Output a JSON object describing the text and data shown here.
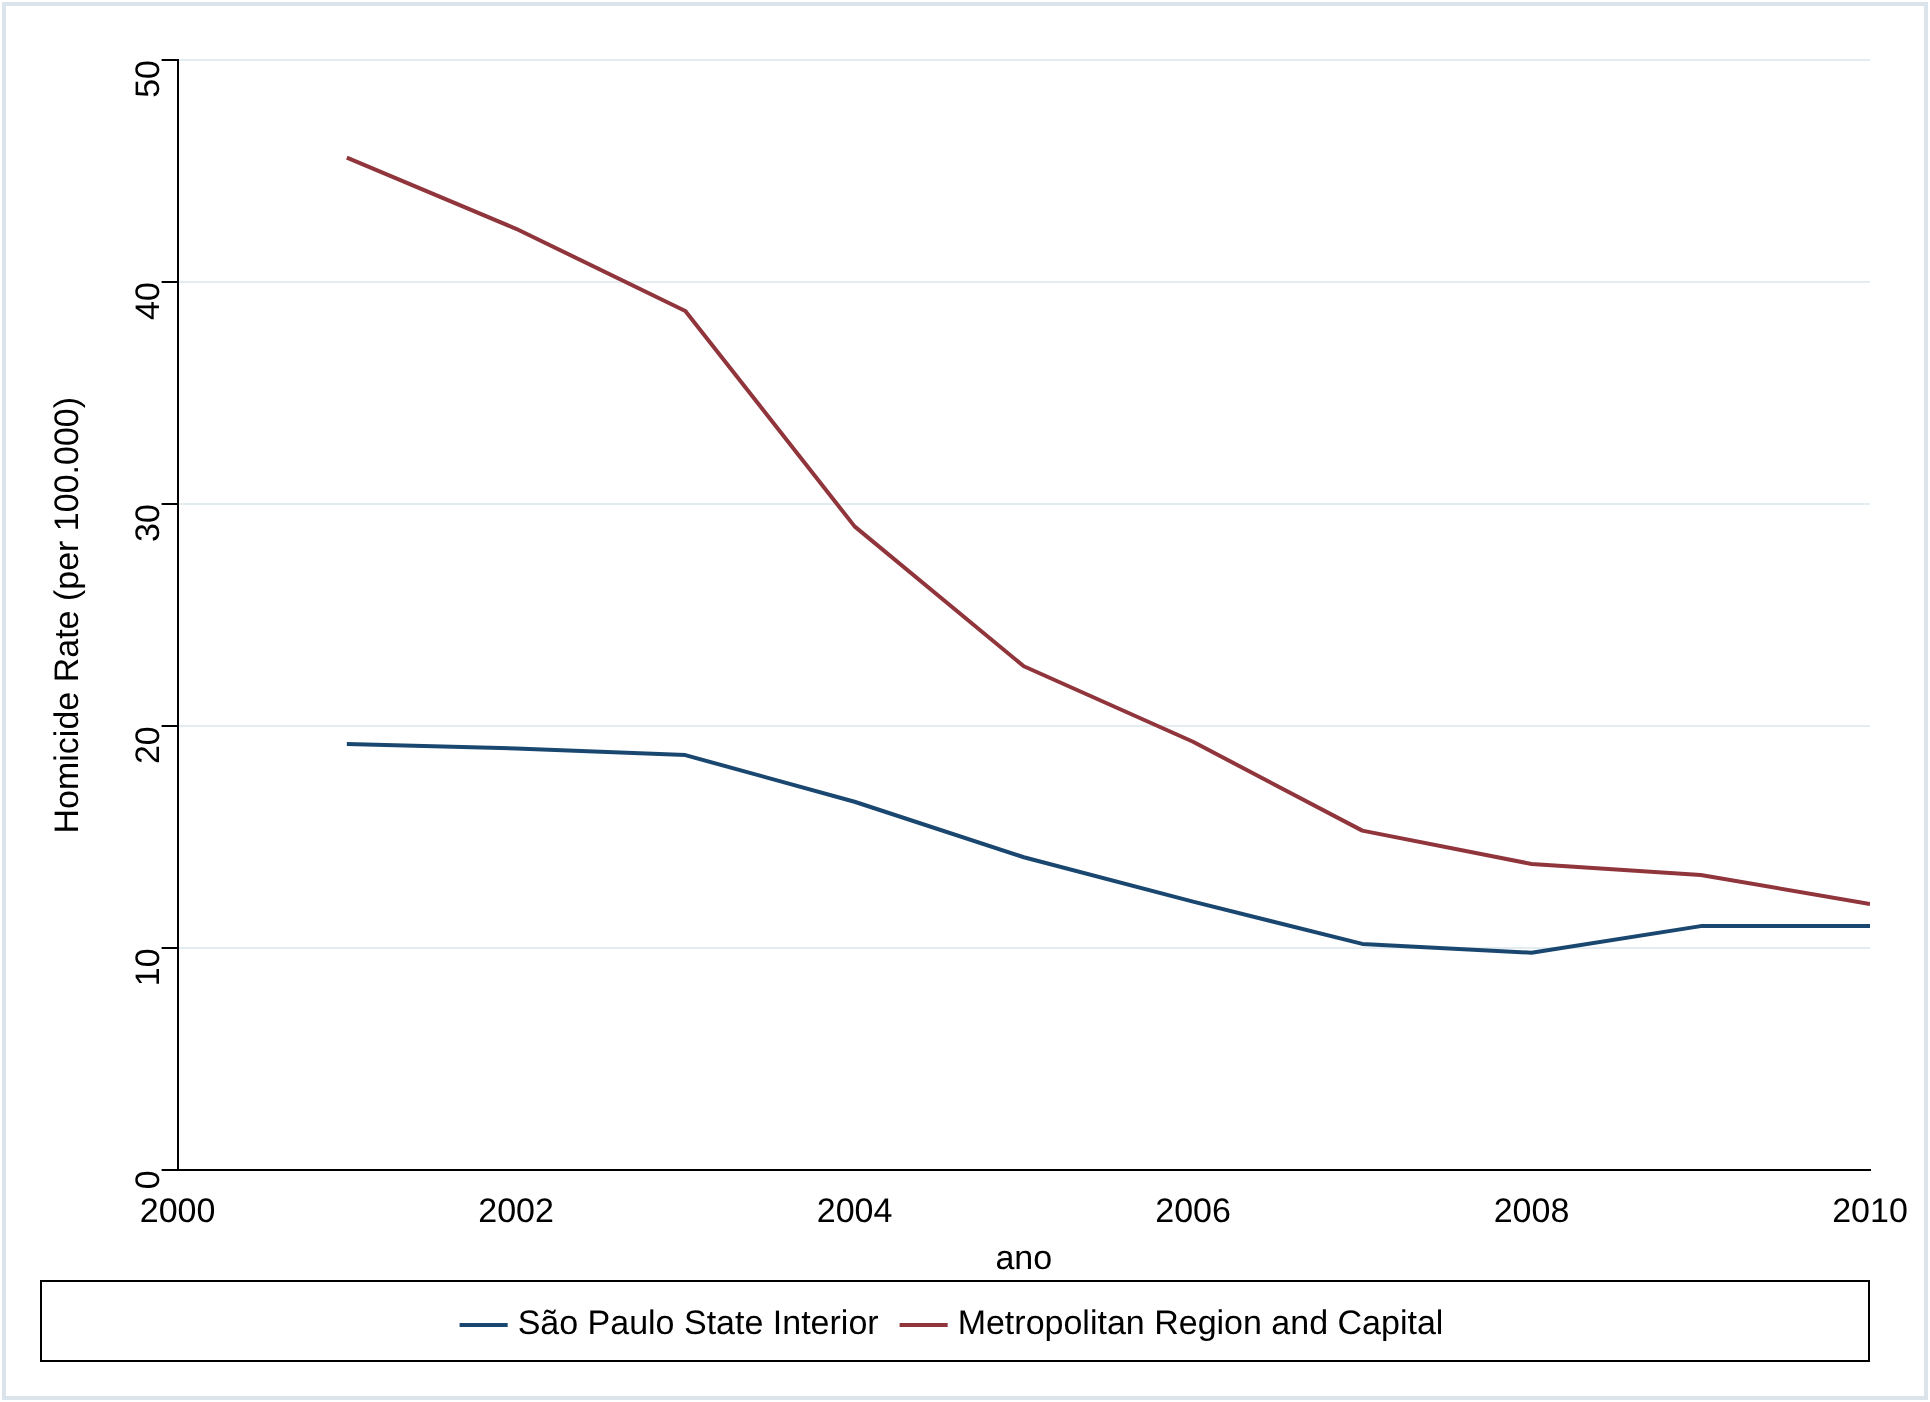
{
  "chart_data": {
    "type": "line",
    "xlabel": "ano",
    "ylabel": "Homicide Rate (per 100.000)",
    "x": [
      2001,
      2002,
      2003,
      2004,
      2005,
      2006,
      2007,
      2008,
      2009,
      2010
    ],
    "series": [
      {
        "name": "São Paulo State Interior",
        "color": "#1a476f",
        "values": [
          19.2,
          19.0,
          18.7,
          16.6,
          14.1,
          12.1,
          10.2,
          9.8,
          11.0,
          11.0
        ]
      },
      {
        "name": "Metropolitan Region and Capital",
        "color": "#90353b",
        "values": [
          45.6,
          42.4,
          38.7,
          29.0,
          22.7,
          19.3,
          15.3,
          13.8,
          13.3,
          12.0
        ]
      }
    ],
    "xlim": [
      2000,
      2010
    ],
    "xticks": [
      2000,
      2002,
      2004,
      2006,
      2008,
      2010
    ],
    "ylim": [
      0,
      50
    ],
    "yticks": [
      0,
      10,
      20,
      30,
      40,
      50
    ],
    "grid": "y",
    "legend": "bottom",
    "marker": "none",
    "line_style": "solid"
  }
}
